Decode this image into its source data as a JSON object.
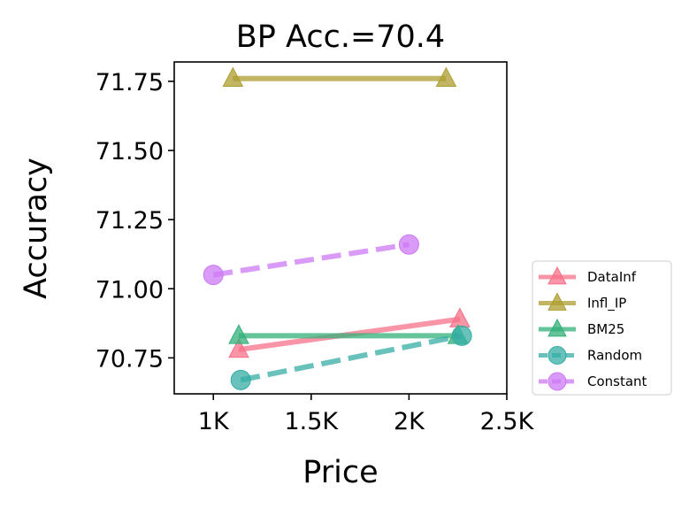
{
  "chart_data": {
    "type": "line",
    "title": "BP Acc.=70.4",
    "xlabel": "Price",
    "ylabel": "Accuracy",
    "xlim": [
      800,
      2500
    ],
    "ylim": [
      70.62,
      71.82
    ],
    "xticks": [
      1000,
      1500,
      2000,
      2500
    ],
    "xtick_labels": [
      "1K",
      "1.5K",
      "2K",
      "2.5K"
    ],
    "yticks": [
      70.75,
      71.0,
      71.25,
      71.5,
      71.75
    ],
    "ytick_labels": [
      "70.75",
      "71.00",
      "71.25",
      "71.50",
      "71.75"
    ],
    "grid": false,
    "legend_position": "outside-bottom-right",
    "series": [
      {
        "name": "DataInf",
        "color": "#f77189",
        "marker": "triangle",
        "dash": "solid",
        "points": [
          {
            "x": 1130,
            "y": 70.78
          },
          {
            "x": 2260,
            "y": 70.89
          }
        ]
      },
      {
        "name": "Infl_IP",
        "color": "#ae9d31",
        "marker": "triangle",
        "dash": "solid",
        "points": [
          {
            "x": 1100,
            "y": 71.76
          },
          {
            "x": 2190,
            "y": 71.76
          }
        ]
      },
      {
        "name": "BM25",
        "color": "#33b07a",
        "marker": "triangle",
        "dash": "solid",
        "points": [
          {
            "x": 1130,
            "y": 70.83
          },
          {
            "x": 2250,
            "y": 70.83
          }
        ]
      },
      {
        "name": "Random",
        "color": "#36ada4",
        "marker": "circle",
        "dash": "dashed",
        "points": [
          {
            "x": 1140,
            "y": 70.67
          },
          {
            "x": 2270,
            "y": 70.83
          }
        ]
      },
      {
        "name": "Constant",
        "color": "#cc7af4",
        "marker": "circle",
        "dash": "dashed",
        "points": [
          {
            "x": 1000,
            "y": 71.05
          },
          {
            "x": 2000,
            "y": 71.16
          }
        ]
      }
    ]
  }
}
